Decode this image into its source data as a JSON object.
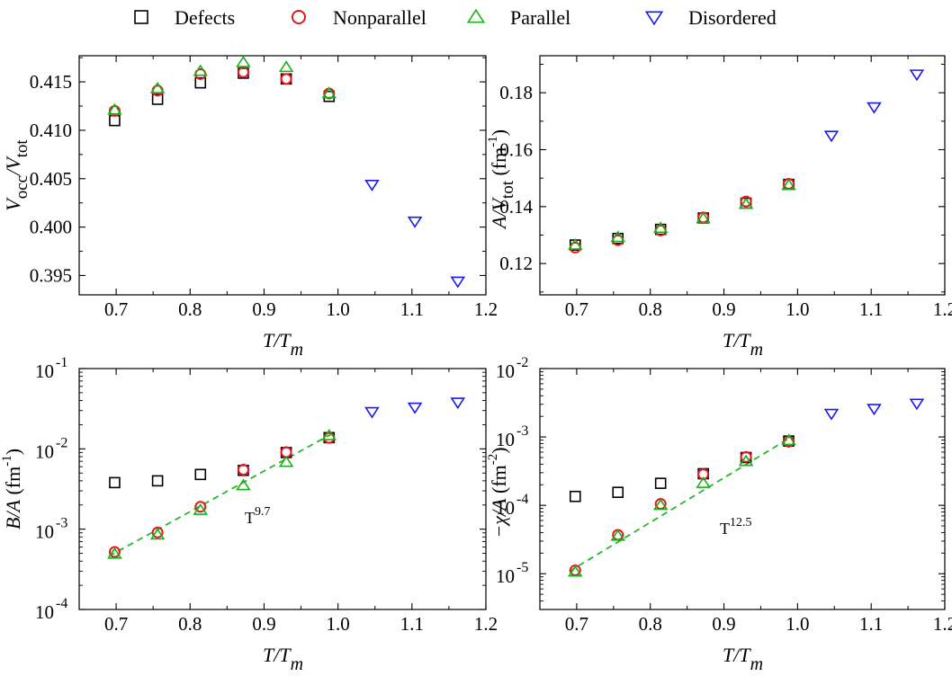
{
  "legend": {
    "items": [
      {
        "label": "Defects",
        "marker": "square",
        "color": "#000000"
      },
      {
        "label": "Nonparallel",
        "marker": "circle",
        "color": "#e8141e"
      },
      {
        "label": "Parallel",
        "marker": "triangle-up",
        "color": "#18b018"
      },
      {
        "label": "Disordered",
        "marker": "triangle-down",
        "color": "#1a1ae6"
      }
    ]
  },
  "fit_color": "#2bb52b",
  "chart_data": [
    {
      "type": "scatter",
      "xlim": [
        0.65,
        1.2
      ],
      "ylim": [
        0.393,
        0.4177
      ],
      "yscale": "linear",
      "xticks": [
        "0.7",
        "0.8",
        "0.9",
        "1.0",
        "1.1",
        "1.2"
      ],
      "yticks": [
        "0.395",
        "0.400",
        "0.405",
        "0.410",
        "0.415"
      ],
      "xlabel": {
        "main": "T/T",
        "sub": "m"
      },
      "ylabel": {
        "main": "V",
        "sub1": "occ",
        "mid": "/V",
        "sub2": "tot"
      },
      "series": [
        {
          "name": "Defects",
          "x": [
            0.698,
            0.756,
            0.814,
            0.872,
            0.93,
            0.988
          ],
          "y": [
            0.411,
            0.4132,
            0.4149,
            0.4159,
            0.4153,
            0.4135
          ]
        },
        {
          "name": "Nonparallel",
          "x": [
            0.698,
            0.756,
            0.814,
            0.872,
            0.93,
            0.988
          ],
          "y": [
            0.412,
            0.4141,
            0.4158,
            0.416,
            0.4153,
            0.4138
          ]
        },
        {
          "name": "Parallel",
          "x": [
            0.698,
            0.756,
            0.814,
            0.872,
            0.93,
            0.988
          ],
          "y": [
            0.4121,
            0.4143,
            0.4161,
            0.417,
            0.4165,
            0.4138
          ]
        },
        {
          "name": "Disordered",
          "x": [
            1.046,
            1.104,
            1.162
          ],
          "y": [
            0.4044,
            0.4006,
            0.3944
          ]
        }
      ]
    },
    {
      "type": "scatter",
      "xlim": [
        0.65,
        1.2
      ],
      "ylim": [
        0.109,
        0.193
      ],
      "yscale": "linear",
      "xticks": [
        "0.7",
        "0.8",
        "0.9",
        "1.0",
        "1.1",
        "1.2"
      ],
      "yticks": [
        "0.12",
        "0.14",
        "0.16",
        "0.18"
      ],
      "xlabel": {
        "main": "T/T",
        "sub": "m"
      },
      "ylabel": {
        "main": "A/V",
        "sub": "tot",
        "unit": " (fm",
        "sup": "-1",
        "close": ")"
      },
      "series": [
        {
          "name": "Defects",
          "x": [
            0.698,
            0.756,
            0.814,
            0.872,
            0.93,
            0.988
          ],
          "y": [
            0.1265,
            0.1288,
            0.132,
            0.136,
            0.1412,
            0.1478
          ]
        },
        {
          "name": "Nonparallel",
          "x": [
            0.698,
            0.756,
            0.814,
            0.872,
            0.93,
            0.988
          ],
          "y": [
            0.1256,
            0.1282,
            0.1316,
            0.1362,
            0.1418,
            0.148
          ]
        },
        {
          "name": "Parallel",
          "x": [
            0.698,
            0.756,
            0.814,
            0.872,
            0.93,
            0.988
          ],
          "y": [
            0.1265,
            0.1292,
            0.1324,
            0.1358,
            0.1408,
            0.1475
          ]
        },
        {
          "name": "Disordered",
          "x": [
            1.046,
            1.104,
            1.162
          ],
          "y": [
            0.165,
            0.175,
            0.1865
          ]
        }
      ]
    },
    {
      "type": "scatter",
      "xlim": [
        0.65,
        1.2
      ],
      "ylim": [
        0.0001,
        0.1
      ],
      "yscale": "log",
      "xticks": [
        "0.7",
        "0.8",
        "0.9",
        "1.0",
        "1.1",
        "1.2"
      ],
      "yticks": [
        {
          "base": "10",
          "exp": "-4"
        },
        {
          "base": "10",
          "exp": "-3"
        },
        {
          "base": "10",
          "exp": "-2"
        },
        {
          "base": "10",
          "exp": "-1"
        }
      ],
      "xlabel": {
        "main": "T/T",
        "sub": "m"
      },
      "ylabel": {
        "main": "B/A",
        "unit": " (fm",
        "sup": "-1",
        "close": ")"
      },
      "annotation": {
        "base": "T",
        "exp": "9.7"
      },
      "fit": {
        "exponent": 9.7,
        "x": [
          0.69,
          0.995
        ],
        "y_at_x1": 0.016
      },
      "series": [
        {
          "name": "Defects",
          "x": [
            0.698,
            0.756,
            0.814,
            0.872,
            0.93,
            0.988
          ],
          "y": [
            0.0038,
            0.004,
            0.0048,
            0.0054,
            0.009,
            0.0138
          ]
        },
        {
          "name": "Nonparallel",
          "x": [
            0.698,
            0.756,
            0.814,
            0.872,
            0.93,
            0.988
          ],
          "y": [
            0.00052,
            0.00091,
            0.0019,
            0.0055,
            0.0091,
            0.0137
          ]
        },
        {
          "name": "Parallel",
          "x": [
            0.698,
            0.756,
            0.814,
            0.872,
            0.93,
            0.988
          ],
          "y": [
            0.00049,
            0.00085,
            0.00172,
            0.0035,
            0.0068,
            0.0146
          ]
        },
        {
          "name": "Disordered",
          "x": [
            1.046,
            1.104,
            1.162
          ],
          "y": [
            0.029,
            0.033,
            0.038
          ]
        }
      ]
    },
    {
      "type": "scatter",
      "xlim": [
        0.65,
        1.2
      ],
      "ylim": [
        3e-06,
        0.01
      ],
      "yscale": "log",
      "xticks": [
        "0.7",
        "0.8",
        "0.9",
        "1.0",
        "1.1",
        "1.2"
      ],
      "yticks": [
        {
          "base": "10",
          "exp": "-5"
        },
        {
          "base": "10",
          "exp": "-4"
        },
        {
          "base": "10",
          "exp": "-3"
        },
        {
          "base": "10",
          "exp": "-2"
        }
      ],
      "xlabel": {
        "main": "T/T",
        "sub": "m"
      },
      "ylabel": {
        "main": "−χ/A",
        "unit": " (fm",
        "sup": "-2",
        "close": ")"
      },
      "annotation": {
        "base": "T",
        "exp": "12.5"
      },
      "fit": {
        "exponent": 12.5,
        "x": [
          0.69,
          0.995
        ],
        "y_at_x1": 0.00105
      },
      "series": [
        {
          "name": "Defects",
          "x": [
            0.698,
            0.756,
            0.814,
            0.872,
            0.93,
            0.988
          ],
          "y": [
            0.000135,
            0.000155,
            0.00021,
            0.00029,
            0.0005,
            0.00087
          ]
        },
        {
          "name": "Nonparallel",
          "x": [
            0.698,
            0.756,
            0.814,
            0.872,
            0.93,
            0.988
          ],
          "y": [
            1.12e-05,
            3.7e-05,
            0.000105,
            0.000285,
            0.00051,
            0.00085
          ]
        },
        {
          "name": "Parallel",
          "x": [
            0.698,
            0.756,
            0.814,
            0.872,
            0.93,
            0.988
          ],
          "y": [
            1.06e-05,
            3.55e-05,
            0.0001,
            0.00021,
            0.00044,
            0.00089
          ]
        },
        {
          "name": "Disordered",
          "x": [
            1.046,
            1.104,
            1.162
          ],
          "y": [
            0.0022,
            0.0026,
            0.0031
          ]
        }
      ]
    }
  ]
}
